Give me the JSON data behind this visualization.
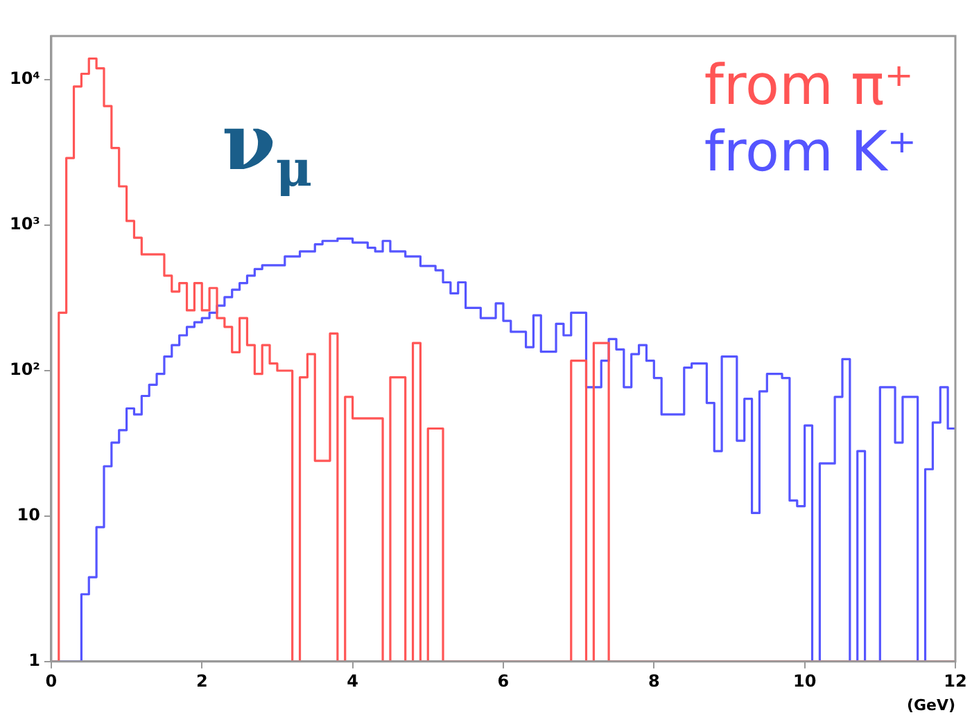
{
  "chart_data": {
    "type": "histogram",
    "xlabel": "(GeV)",
    "annotations": [
      "ν$_{μ}$"
    ],
    "legend": "top right",
    "grid": false,
    "log": "y",
    "xlim": [
      0,
      12
    ],
    "xticks": [
      0,
      2,
      4,
      6,
      8,
      10,
      12
    ],
    "ylim": [
      1,
      20000
    ],
    "yticks": [
      1,
      10,
      {
        "value": 100,
        "label": "10²"
      },
      {
        "value": 1000,
        "label": "10³"
      },
      {
        "value": 10000,
        "label": "10⁴"
      }
    ],
    "bins": [
      0,
      0.1,
      0.2,
      0.3,
      0.4,
      0.5,
      0.6,
      0.7,
      0.8,
      0.9,
      1,
      1.1,
      1.2,
      1.3,
      1.4,
      1.5,
      1.6,
      1.7,
      1.8,
      1.9,
      2,
      2.1,
      2.2,
      2.3,
      2.4,
      2.5,
      2.6,
      2.7,
      2.8,
      2.9,
      3,
      3.1,
      3.2,
      3.3,
      3.4,
      3.5,
      3.6,
      3.7,
      3.8,
      3.9,
      4,
      4.1,
      4.2,
      4.3,
      4.4,
      4.5,
      4.6,
      4.7,
      4.8,
      4.9,
      5,
      5.1,
      5.2,
      5.3,
      5.4,
      5.5,
      5.6,
      5.7,
      5.8,
      5.9,
      6,
      6.1,
      6.2,
      6.3,
      6.4,
      6.5,
      6.6,
      6.7,
      6.8,
      6.9,
      7,
      7.1,
      7.2,
      7.3,
      7.4,
      7.5,
      7.6,
      7.7,
      7.8,
      7.9,
      8,
      8.1,
      8.2,
      8.3,
      8.4,
      8.5,
      8.6,
      8.7,
      8.8,
      8.9,
      9,
      9.1,
      9.2,
      9.3,
      9.4,
      9.5,
      9.6,
      9.7,
      9.8,
      9.9,
      10,
      10.1,
      10.2,
      10.3,
      10.4,
      10.5,
      10.6,
      10.7,
      10.8,
      10.9,
      11,
      11.1,
      11.2,
      11.3,
      11.4,
      11.5,
      11.6,
      11.7,
      11.8,
      11.9,
      12
    ],
    "series": [
      {
        "name": "from π⁺",
        "color": "#ff5555",
        "values": [
          null,
          250,
          2900,
          9000,
          11000,
          14000,
          12000,
          6600,
          3400,
          1850,
          1070,
          820,
          630,
          630,
          630,
          450,
          350,
          400,
          260,
          400,
          260,
          370,
          230,
          200,
          134,
          230,
          150,
          95,
          150,
          112,
          100,
          100,
          null,
          90,
          130,
          24,
          24,
          180,
          null,
          66,
          47,
          47,
          47,
          47,
          null,
          90,
          90,
          null,
          155,
          null,
          40,
          40,
          null,
          null,
          null,
          null,
          null,
          null,
          null,
          null,
          null,
          null,
          null,
          null,
          null,
          null,
          null,
          null,
          null,
          117,
          117,
          null,
          155,
          155,
          null,
          null,
          null,
          null,
          null,
          null,
          null,
          null,
          null,
          null,
          null,
          null,
          null,
          null,
          null,
          null,
          null,
          null,
          null,
          null,
          null,
          null,
          null,
          null,
          null,
          null,
          null,
          null,
          null,
          null,
          null,
          null,
          null,
          null,
          null,
          null,
          null,
          null,
          null,
          null,
          null,
          null,
          null,
          null,
          null,
          null
        ]
      },
      {
        "name": "from K⁺",
        "color": "#5555ff",
        "values": [
          null,
          null,
          null,
          null,
          2.9,
          3.8,
          8.4,
          22,
          32,
          39,
          55,
          50,
          67,
          80,
          95,
          125,
          150,
          175,
          200,
          215,
          230,
          250,
          280,
          320,
          360,
          400,
          450,
          500,
          530,
          530,
          530,
          610,
          610,
          660,
          660,
          740,
          780,
          780,
          810,
          810,
          760,
          760,
          700,
          660,
          780,
          660,
          660,
          610,
          610,
          525,
          525,
          490,
          405,
          340,
          405,
          270,
          270,
          230,
          230,
          290,
          220,
          185,
          185,
          145,
          240,
          135,
          135,
          210,
          175,
          250,
          250,
          77,
          77,
          117,
          165,
          140,
          77,
          130,
          150,
          117,
          89,
          50,
          50,
          50,
          105,
          112,
          112,
          60,
          28,
          125,
          125,
          33,
          64,
          10.5,
          72,
          95,
          95,
          89,
          12.8,
          11.7,
          42,
          null,
          23,
          23,
          66,
          120,
          null,
          28,
          null,
          null,
          77,
          77,
          32,
          66,
          66,
          null,
          21,
          44,
          77,
          40
        ]
      }
    ]
  }
}
